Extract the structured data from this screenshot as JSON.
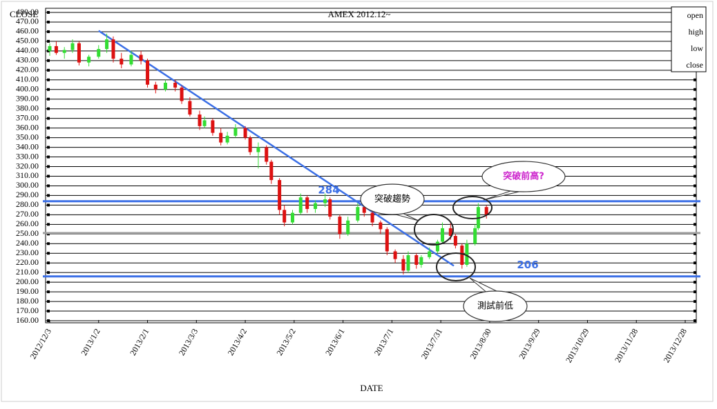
{
  "chart_data": {
    "type": "candlestick",
    "title": "AMEX 2012.12~",
    "y_label": "CLOSE",
    "x_label": "DATE",
    "x": [
      "2012/12/3",
      "2012/12/7",
      "2012/12/12",
      "2012/12/17",
      "2012/12/21",
      "2012/12/27",
      "2013/1/2",
      "2013/1/7",
      "2013/1/11",
      "2013/1/16",
      "2013/1/22",
      "2013/1/28",
      "2013/2/1",
      "2013/2/6",
      "2013/2/12",
      "2013/2/18",
      "2013/2/22",
      "2013/2/27",
      "2013/3/5",
      "2013/3/8",
      "2013/3/13",
      "2013/3/18",
      "2013/3/22",
      "2013/3/27",
      "2013/4/2",
      "2013/4/5",
      "2013/4/10",
      "2013/4/15",
      "2013/4/18",
      "2013/4/23",
      "2013/4/26",
      "2013/5/1",
      "2013/5/6",
      "2013/5/10",
      "2013/5/15",
      "2013/5/21",
      "2013/5/24",
      "2013/5/30",
      "2013/6/4",
      "2013/6/10",
      "2013/6/14",
      "2013/6/19",
      "2013/6/24",
      "2013/6/28",
      "2013/7/3",
      "2013/7/8",
      "2013/7/11",
      "2013/7/16",
      "2013/7/19",
      "2013/7/24",
      "2013/7/29",
      "2013/8/1",
      "2013/8/6",
      "2013/8/9",
      "2013/8/13",
      "2013/8/16",
      "2013/8/21",
      "2013/8/23",
      "2013/8/28"
    ],
    "series": [
      {
        "name": "open",
        "values": [
          440,
          445,
          438,
          441,
          448,
          428,
          434,
          442,
          452,
          432,
          426,
          436,
          430,
          405,
          400,
          407,
          402,
          388,
          374,
          362,
          368,
          355,
          345,
          352,
          360,
          350,
          335,
          340,
          325,
          306,
          275,
          262,
          272,
          288,
          276,
          282,
          286,
          268,
          250,
          264,
          278,
          272,
          262,
          255,
          232,
          224,
          212,
          228,
          218,
          226,
          232,
          242,
          256,
          248,
          238,
          218,
          240,
          256,
          278
        ]
      },
      {
        "name": "high",
        "values": [
          448,
          450,
          444,
          452,
          450,
          436,
          446,
          458,
          455,
          438,
          440,
          440,
          432,
          408,
          410,
          410,
          404,
          392,
          378,
          372,
          370,
          360,
          356,
          364,
          362,
          352,
          345,
          342,
          327,
          308,
          280,
          275,
          292,
          290,
          285,
          292,
          288,
          270,
          268,
          282,
          284,
          274,
          264,
          257,
          234,
          228,
          232,
          230,
          228,
          236,
          244,
          262,
          262,
          250,
          240,
          244,
          260,
          282,
          280
        ]
      },
      {
        "name": "low",
        "values": [
          435,
          436,
          432,
          438,
          425,
          424,
          432,
          438,
          428,
          422,
          424,
          426,
          402,
          396,
          398,
          398,
          385,
          372,
          358,
          360,
          352,
          342,
          343,
          350,
          348,
          332,
          318,
          322,
          302,
          270,
          258,
          260,
          270,
          272,
          272,
          278,
          265,
          245,
          248,
          262,
          268,
          258,
          250,
          228,
          220,
          208,
          210,
          214,
          215,
          224,
          230,
          240,
          244,
          235,
          214,
          216,
          238,
          254,
          266
        ]
      },
      {
        "name": "close",
        "values": [
          445,
          438,
          441,
          448,
          428,
          434,
          442,
          452,
          432,
          426,
          436,
          430,
          405,
          400,
          407,
          402,
          388,
          374,
          362,
          368,
          355,
          345,
          352,
          360,
          350,
          335,
          340,
          325,
          306,
          275,
          262,
          272,
          288,
          276,
          282,
          286,
          268,
          250,
          264,
          278,
          272,
          262,
          255,
          232,
          224,
          212,
          228,
          218,
          226,
          232,
          242,
          256,
          248,
          238,
          218,
          240,
          256,
          278,
          270
        ]
      }
    ],
    "up_color": "#33dd33",
    "down_color": "#dd1111",
    "ylim": [
      160,
      480
    ],
    "yticks": [
      {
        "value": 160,
        "label": "160.00"
      },
      {
        "value": 170,
        "label": "170.00"
      },
      {
        "value": 180,
        "label": "180.00"
      },
      {
        "value": 190,
        "label": "190.00"
      },
      {
        "value": 200,
        "label": "200.00"
      },
      {
        "value": 210,
        "label": "210.00"
      },
      {
        "value": 220,
        "label": "220.00"
      },
      {
        "value": 230,
        "label": "230.00"
      },
      {
        "value": 240,
        "label": "240.00"
      },
      {
        "value": 250,
        "label": "250.00"
      },
      {
        "value": 260,
        "label": "260.00"
      },
      {
        "value": 270,
        "label": "270.00"
      },
      {
        "value": 280,
        "label": "280.00"
      },
      {
        "value": 290,
        "label": "290.00"
      },
      {
        "value": 300,
        "label": "300.00"
      },
      {
        "value": 310,
        "label": "310.00"
      },
      {
        "value": 320,
        "label": "320.00"
      },
      {
        "value": 330,
        "label": "330.00"
      },
      {
        "value": 340,
        "label": "340.00"
      },
      {
        "value": 350,
        "label": "350.00"
      },
      {
        "value": 360,
        "label": "360.00"
      },
      {
        "value": 370,
        "label": "370.00"
      },
      {
        "value": 380,
        "label": "380.00"
      },
      {
        "value": 390,
        "label": "390.00"
      },
      {
        "value": 400,
        "label": "400.00"
      },
      {
        "value": 410,
        "label": "410.00"
      },
      {
        "value": 420,
        "label": "420.00"
      },
      {
        "value": 430,
        "label": "430.00"
      },
      {
        "value": 440,
        "label": "440.00"
      },
      {
        "value": 450,
        "label": "450.00"
      },
      {
        "value": 460,
        "label": "460.00"
      },
      {
        "value": 470,
        "label": "470.00"
      },
      {
        "value": 480,
        "label": "480.00"
      }
    ],
    "xlim": [
      "2012/12/3",
      "2013/12/28"
    ],
    "xticks": [
      "2012/12/3",
      "2013/1/2",
      "2013/2/1",
      "2013/3/3",
      "2013/4/2",
      "2013/5/2",
      "2013/6/1",
      "2013/7/1",
      "2013/7/31",
      "2013/8/30",
      "2013/9/29",
      "2013/10/29",
      "2013/11/28",
      "2013/12/28"
    ],
    "grid": true,
    "hlines": [
      {
        "value": 284,
        "label": "284",
        "color": "#3b6fe6"
      },
      {
        "value": 206,
        "label": "206",
        "color": "#3b6fe6"
      },
      {
        "value": 251,
        "color": "#a0a0a0"
      }
    ],
    "trendline": {
      "x": [
        "2013/1/2",
        "2013/8/8"
      ],
      "values": [
        461,
        217
      ],
      "color": "#3b6fe6"
    },
    "annotations": [
      "突破趨勢",
      "突破前高?",
      "測試前低"
    ]
  }
}
